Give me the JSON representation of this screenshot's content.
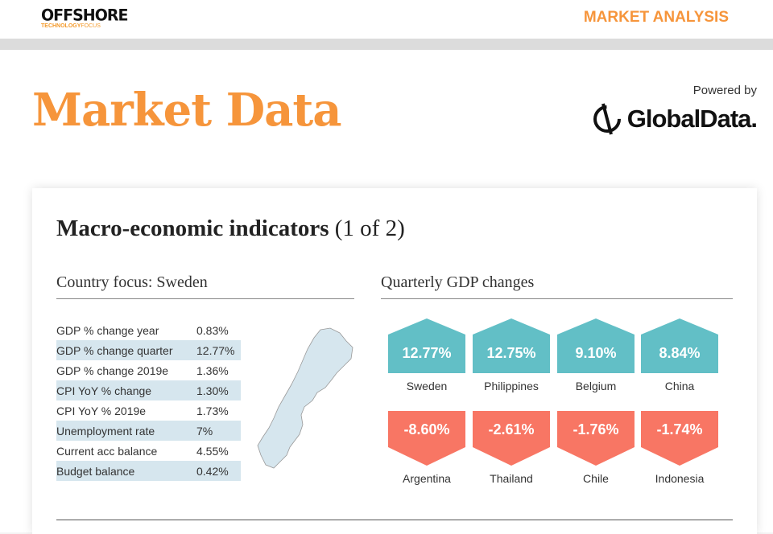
{
  "header": {
    "logo_main": "OFFSHORE",
    "logo_sub_bold": "TECHNOLOGY",
    "logo_sub": "FOCUS",
    "section": "MARKET ANALYSIS"
  },
  "page": {
    "title": "Market Data",
    "powered_by": "Powered by",
    "brand": "GlobalData."
  },
  "card": {
    "title_bold": "Macro-economic indicators",
    "title_rest": " (1 of 2)",
    "country_focus": "Country focus: Sweden",
    "indicators": [
      {
        "label": "GDP % change year",
        "value": "0.83%"
      },
      {
        "label": "GDP % change quarter",
        "value": "12.77%"
      },
      {
        "label": "GDP % change 2019e",
        "value": "1.36%"
      },
      {
        "label": "CPI YoY % change",
        "value": "1.30%"
      },
      {
        "label": "CPI YoY % 2019e",
        "value": "1.73%"
      },
      {
        "label": "Unemployment rate",
        "value": "7%"
      },
      {
        "label": "Current acc balance",
        "value": "4.55%"
      },
      {
        "label": "Budget balance",
        "value": "0.42%"
      }
    ],
    "gdp_title": "Quarterly GDP changes",
    "top": [
      {
        "value": "12.77%",
        "country": "Sweden"
      },
      {
        "value": "12.75%",
        "country": "Philippines"
      },
      {
        "value": "9.10%",
        "country": "Belgium"
      },
      {
        "value": "8.84%",
        "country": "China"
      }
    ],
    "bottom": [
      {
        "value": "-8.60%",
        "country": "Argentina"
      },
      {
        "value": "-2.61%",
        "country": "Thailand"
      },
      {
        "value": "-1.76%",
        "country": "Chile"
      },
      {
        "value": "-1.74%",
        "country": "Indonesia"
      }
    ]
  },
  "colors": {
    "accent": "#f6953b",
    "positive": "#62bfc6",
    "negative": "#f87664",
    "map": "#d6e6ee"
  }
}
